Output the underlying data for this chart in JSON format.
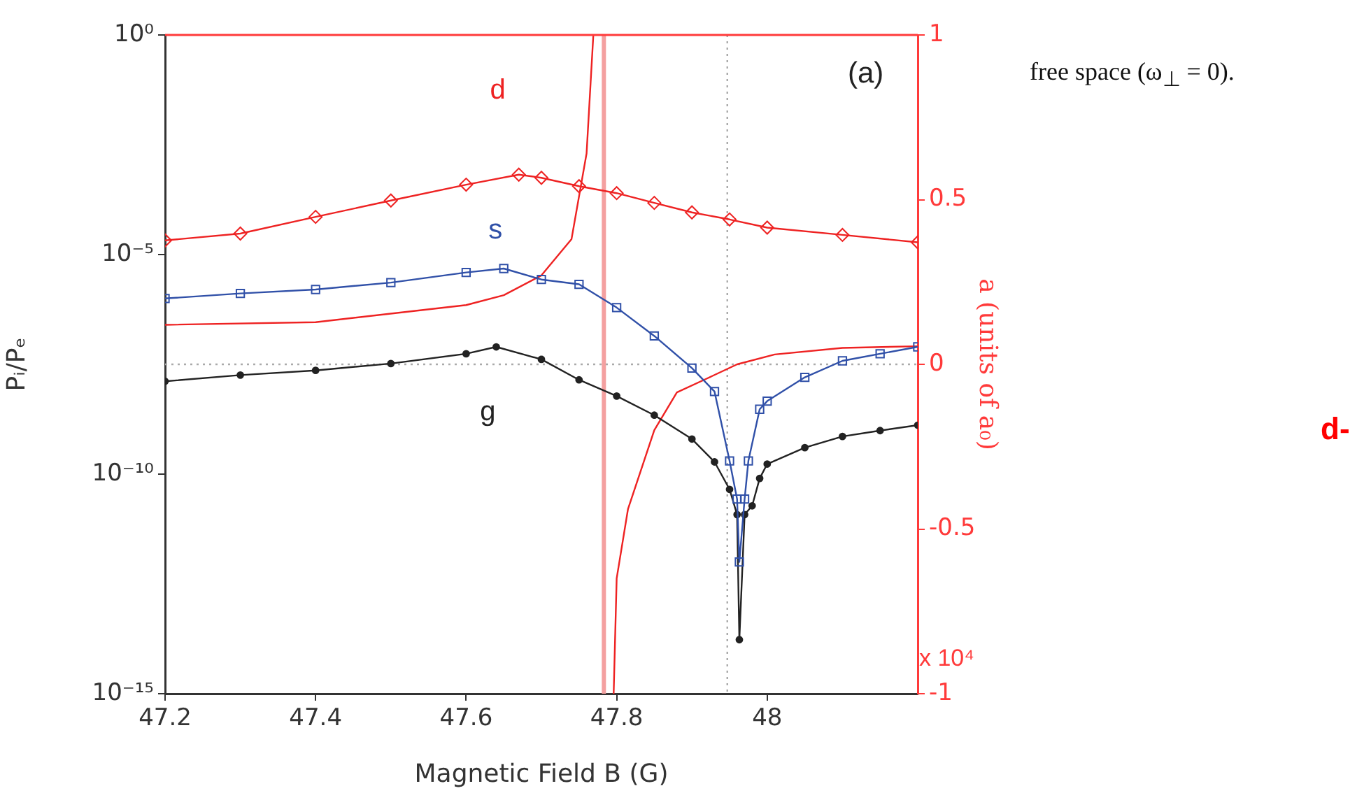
{
  "chart_data": {
    "type": "line",
    "xlabel": "Magnetic Field B (G)",
    "ylabel": "Pᵢ/Pₑ",
    "y2label": "a (units of a₀)",
    "log": "y",
    "grid": false,
    "legend": false,
    "xlim": [
      47.2,
      48.2
    ],
    "xticks": [
      47.2,
      47.4,
      47.6,
      47.8,
      48
    ],
    "ylim": [
      1e-15,
      1
    ],
    "yticks": [
      {
        "value": 1e-15,
        "label": "10⁻¹⁵"
      },
      {
        "value": 1e-10,
        "label": "10⁻¹⁰"
      },
      {
        "value": 1e-05,
        "label": "10⁻⁵"
      },
      {
        "value": 1,
        "label": "10⁰"
      }
    ],
    "y2lim": [
      -1,
      1
    ],
    "y2ticks": [
      -1,
      -0.5,
      0,
      0.5,
      1
    ],
    "series": [
      {
        "name": "d",
        "color": "#ee2222",
        "marker": "diamond",
        "x": [
          47.2,
          47.3,
          47.4,
          47.5,
          47.6,
          47.67,
          47.7,
          47.75,
          47.8,
          47.85,
          47.9,
          47.95,
          48.0,
          48.1,
          48.2
        ],
        "values": [
          2.1e-05,
          3e-05,
          7.2e-05,
          0.00017,
          0.00039,
          0.00066,
          0.00056,
          0.00036,
          0.00025,
          0.00015,
          9.1e-05,
          6.3e-05,
          4.1e-05,
          2.8e-05,
          1.9e-05
        ]
      },
      {
        "name": "s",
        "color": "#3050a8",
        "marker": "square",
        "x": [
          47.2,
          47.3,
          47.4,
          47.5,
          47.6,
          47.65,
          47.7,
          47.75,
          47.8,
          47.85,
          47.9,
          47.93,
          47.95,
          47.96,
          47.963,
          47.97,
          47.975,
          47.99,
          48.0,
          48.05,
          48.1,
          48.15,
          48.2
        ],
        "values": [
          1e-06,
          1.3e-06,
          1.6e-06,
          2.3e-06,
          3.9e-06,
          4.8e-06,
          2.7e-06,
          2.1e-06,
          6.2e-07,
          1.4e-07,
          2.6e-08,
          7.6e-09,
          2e-10,
          2.7e-11,
          1e-12,
          2.7e-11,
          2e-10,
          3e-09,
          4.6e-09,
          1.6e-08,
          3.8e-08,
          5.5e-08,
          7.9e-08
        ]
      },
      {
        "name": "g",
        "color": "#222222",
        "marker": "circle",
        "x": [
          47.2,
          47.3,
          47.4,
          47.5,
          47.6,
          47.64,
          47.7,
          47.75,
          47.8,
          47.85,
          47.9,
          47.93,
          47.95,
          47.96,
          47.963,
          47.97,
          47.98,
          47.99,
          48.0,
          48.05,
          48.1,
          48.15,
          48.2
        ],
        "values": [
          1.3e-08,
          1.8e-08,
          2.3e-08,
          3.3e-08,
          5.5e-08,
          7.9e-08,
          4.1e-08,
          1.4e-08,
          6e-09,
          2.2e-09,
          6.3e-10,
          1.9e-10,
          4.5e-11,
          1.2e-11,
          1.7e-14,
          1.2e-11,
          1.9e-11,
          8e-11,
          1.7e-10,
          4e-10,
          7.2e-10,
          9.8e-10,
          1.3e-09
        ]
      },
      {
        "color": "#ee2222",
        "marker": "none",
        "axis": "y2",
        "x": [
          47.2,
          47.4,
          47.6,
          47.65,
          47.7,
          47.74,
          47.76,
          47.769,
          47.783,
          47.796,
          47.8,
          47.815,
          47.85,
          47.88,
          47.92,
          47.96,
          48.01,
          48.1,
          48.2
        ],
        "values": [
          0.12,
          0.128,
          0.18,
          0.21,
          0.27,
          0.38,
          0.64,
          1,
          null,
          -1,
          -0.65,
          -0.44,
          -0.2,
          -0.085,
          -0.043,
          0,
          0.03,
          0.05,
          0.055
        ]
      }
    ],
    "ref_lines": [
      {
        "axis": "x",
        "value": 47.783,
        "color": "#f4a0a0",
        "line_style": "solid"
      },
      {
        "axis": "x",
        "value": 47.947,
        "color": "#aaaaaa",
        "line_style": "dotted"
      },
      {
        "axis": "y2",
        "value": 0,
        "color": "#aaaaaa",
        "line_style": "dotted"
      }
    ],
    "annotations": [
      "(a)",
      "x 10⁴",
      "free space (ω$_{⊥}$ = 0).",
      "d-"
    ]
  }
}
